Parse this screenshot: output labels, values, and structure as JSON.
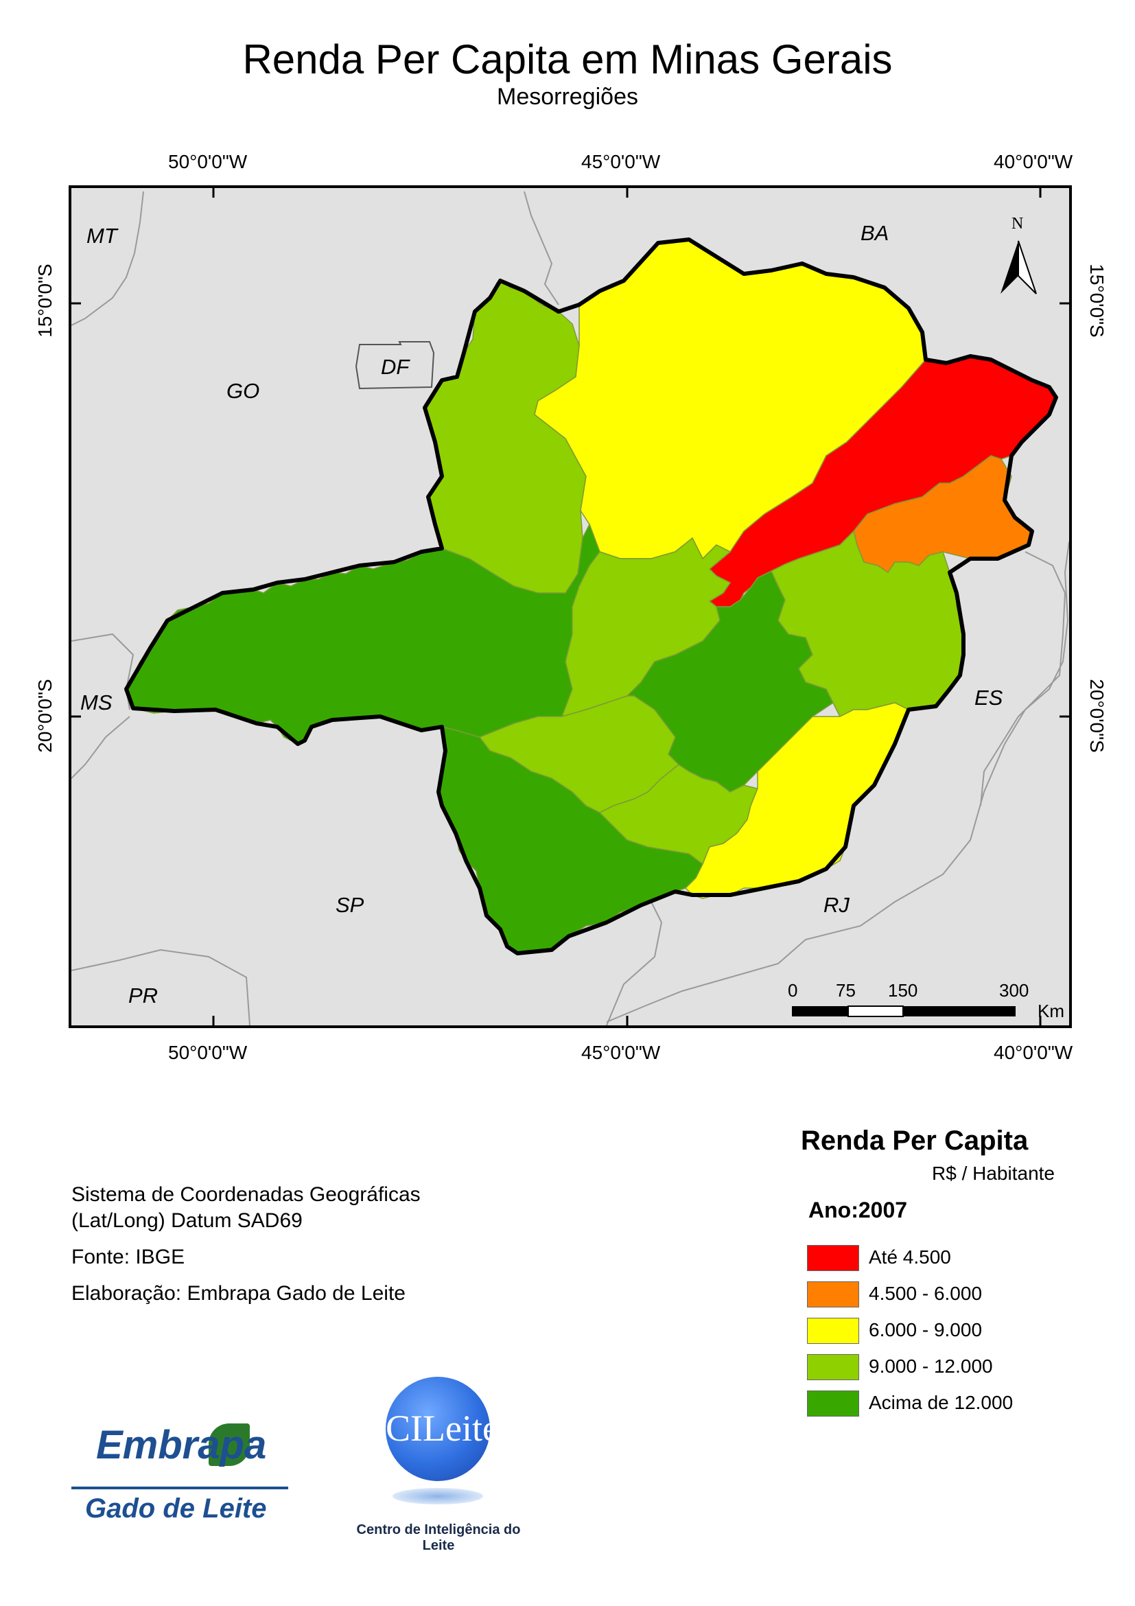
{
  "map": {
    "title": "Renda Per Capita em Minas Gerais",
    "subtitle": "Mesorregiões",
    "coords": {
      "lon_50": "50°0'0\"W",
      "lon_45": "45°0'0\"W",
      "lon_40": "40°0'0\"W",
      "lat_15": "15°0'0\"S",
      "lat_20": "20°0'0\"S"
    },
    "states": {
      "mt": "MT",
      "go": "GO",
      "df": "DF",
      "ba": "BA",
      "ms": "MS",
      "es": "ES",
      "sp": "SP",
      "rj": "RJ",
      "pr": "PR"
    },
    "north_letter": "N",
    "scale": {
      "t0": "0",
      "t75": "75",
      "t150": "150",
      "t300": "300",
      "unit": "Km"
    },
    "region_classes": {
      "noroeste": "9.000 - 12.000",
      "norte": "6.000 - 9.000",
      "jequitinhonha": "Até 4.500",
      "mucuri": "4.500 - 6.000",
      "triangulo": "Acima de 12.000",
      "central": "9.000 - 12.000",
      "metropolitana": "Acima de 12.000",
      "vale_rio_doce": "9.000 - 12.000",
      "oeste": "9.000 - 12.000",
      "sul": "Acima de 12.000",
      "campo_vertentes": "9.000 - 12.000",
      "zona_mata": "6.000 - 9.000"
    }
  },
  "info": {
    "line1": "Sistema de Coordenadas Geográficas",
    "line2": "(Lat/Long) Datum SAD69",
    "source": "Fonte: IBGE",
    "author": "Elaboração: Embrapa Gado de Leite"
  },
  "legend": {
    "title": "Renda Per Capita",
    "unit": "R$ / Habitante",
    "year": "Ano:2007",
    "items": [
      {
        "label": "Até 4.500",
        "color": "#ff0000"
      },
      {
        "label": "4.500 - 6.000",
        "color": "#ff8000"
      },
      {
        "label": "6.000 - 9.000",
        "color": "#ffff00"
      },
      {
        "label": "9.000 - 12.000",
        "color": "#8fd000"
      },
      {
        "label": "Acima de 12.000",
        "color": "#38a800"
      }
    ]
  },
  "logos": {
    "embrapa": "Embrapa",
    "gado": "Gado de Leite",
    "cileite": "CILeite",
    "cileite_sub": "Centro de Inteligência do Leite"
  },
  "colors": {
    "background": "#e1e1e1",
    "border": "#000000"
  }
}
